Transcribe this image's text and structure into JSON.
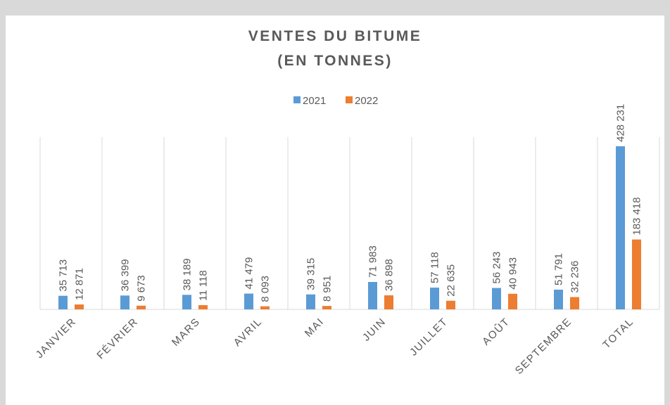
{
  "chart_data": {
    "type": "bar",
    "title": [
      "VENTES DU BITUME",
      "(EN TONNES)"
    ],
    "categories": [
      "JANVIER",
      "FÉVRIER",
      "MARS",
      "AVRIL",
      "MAI",
      "JUIN",
      "JUILLET",
      "AOÛT",
      "SEPTEMBRE",
      "TOTAL"
    ],
    "series": [
      {
        "name": "2021",
        "color": "#5b9bd5",
        "values": [
          35713,
          36399,
          38189,
          41479,
          39315,
          71983,
          57118,
          56243,
          51791,
          428231
        ],
        "value_labels": [
          "35 713",
          "36 399",
          "38 189",
          "41 479",
          "39 315",
          "71 983",
          "57 118",
          "56 243",
          "51 791",
          "428 231"
        ]
      },
      {
        "name": "2022",
        "color": "#ed7d31",
        "values": [
          12871,
          9673,
          11118,
          8093,
          8951,
          36898,
          22635,
          40943,
          32236,
          183418
        ],
        "value_labels": [
          "12 871",
          "9 673",
          "11 118",
          "8 093",
          "8 951",
          "36 898",
          "22 635",
          "40 943",
          "32 236",
          "183 418"
        ]
      }
    ]
  }
}
